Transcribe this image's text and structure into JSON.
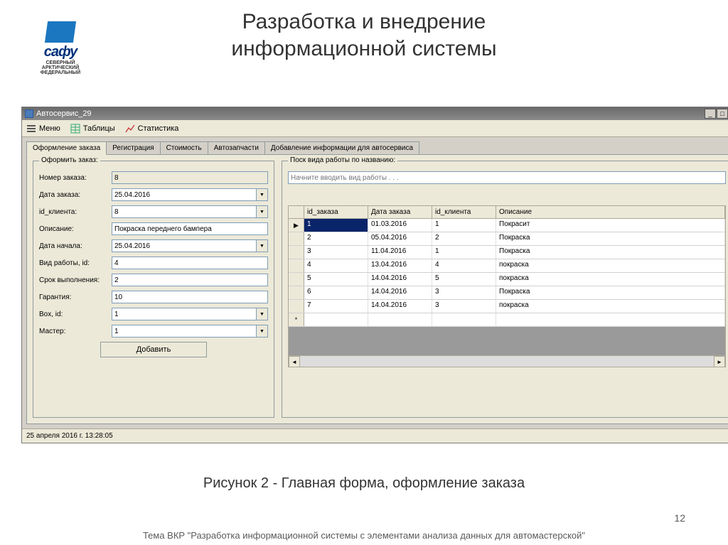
{
  "slide": {
    "title_l1": "Разработка и внедрение",
    "title_l2": "информационной системы",
    "caption": "Рисунок 2 - Главная форма, оформление заказа",
    "footer": "Тема ВКР \"Разработка информационной системы с элементами анализа данных для автомастерской\"",
    "page": "12"
  },
  "logo": {
    "main": "сафу",
    "sub1": "СЕВЕРНЫЙ",
    "sub2": "АРКТИЧЕСКИЙ",
    "sub3": "ФЕДЕРАЛЬНЫЙ"
  },
  "window": {
    "title": "Автосервис_29"
  },
  "toolbar": {
    "menu": "Меню",
    "tables": "Таблицы",
    "stats": "Статистика"
  },
  "tabs": {
    "t0": "Оформление заказа",
    "t1": "Регистрация",
    "t2": "Стоимость",
    "t3": "Автозапчасти",
    "t4": "Добавление информации для автосервиса"
  },
  "form": {
    "group_title": "Оформить заказ:",
    "labels": {
      "num": "Номер заказа:",
      "date": "Дата заказа:",
      "client": "id_клиента:",
      "desc": "Описание:",
      "start": "Дата начала:",
      "work": "Вид работы, id:",
      "term": "Срок выполнения:",
      "warranty": "Гарантия:",
      "box": "Box, id:",
      "master": "Мастер:"
    },
    "values": {
      "num": "8",
      "date": "25.04.2016",
      "client": "8",
      "desc": "Покраска переднего бампера",
      "start": "25.04.2016",
      "work": "4",
      "term": "2",
      "warranty": "10",
      "box": "1",
      "master": "1"
    },
    "add_btn": "Добавить"
  },
  "search": {
    "group_title": "Поск вида работы по названию:",
    "placeholder": "Начните вводить вид работы . . ."
  },
  "grid": {
    "headers": {
      "id": "id_заказа",
      "date": "Дата заказа",
      "client": "id_клиента",
      "desc": "Описание"
    },
    "rows": [
      {
        "id": "1",
        "date": "01.03.2016",
        "client": "1",
        "desc": "Покрасит"
      },
      {
        "id": "2",
        "date": "05.04.2016",
        "client": "2",
        "desc": "Покраска"
      },
      {
        "id": "3",
        "date": "11.04.2016",
        "client": "1",
        "desc": "Покраска"
      },
      {
        "id": "4",
        "date": "13.04.2016",
        "client": "4",
        "desc": "покраска"
      },
      {
        "id": "5",
        "date": "14.04.2016",
        "client": "5",
        "desc": "покраска"
      },
      {
        "id": "6",
        "date": "14.04.2016",
        "client": "3",
        "desc": "Покраска"
      },
      {
        "id": "7",
        "date": "14.04.2016",
        "client": "3",
        "desc": "покраска"
      }
    ]
  },
  "status": {
    "text": "25 апреля 2016 г.   13:28:05"
  }
}
